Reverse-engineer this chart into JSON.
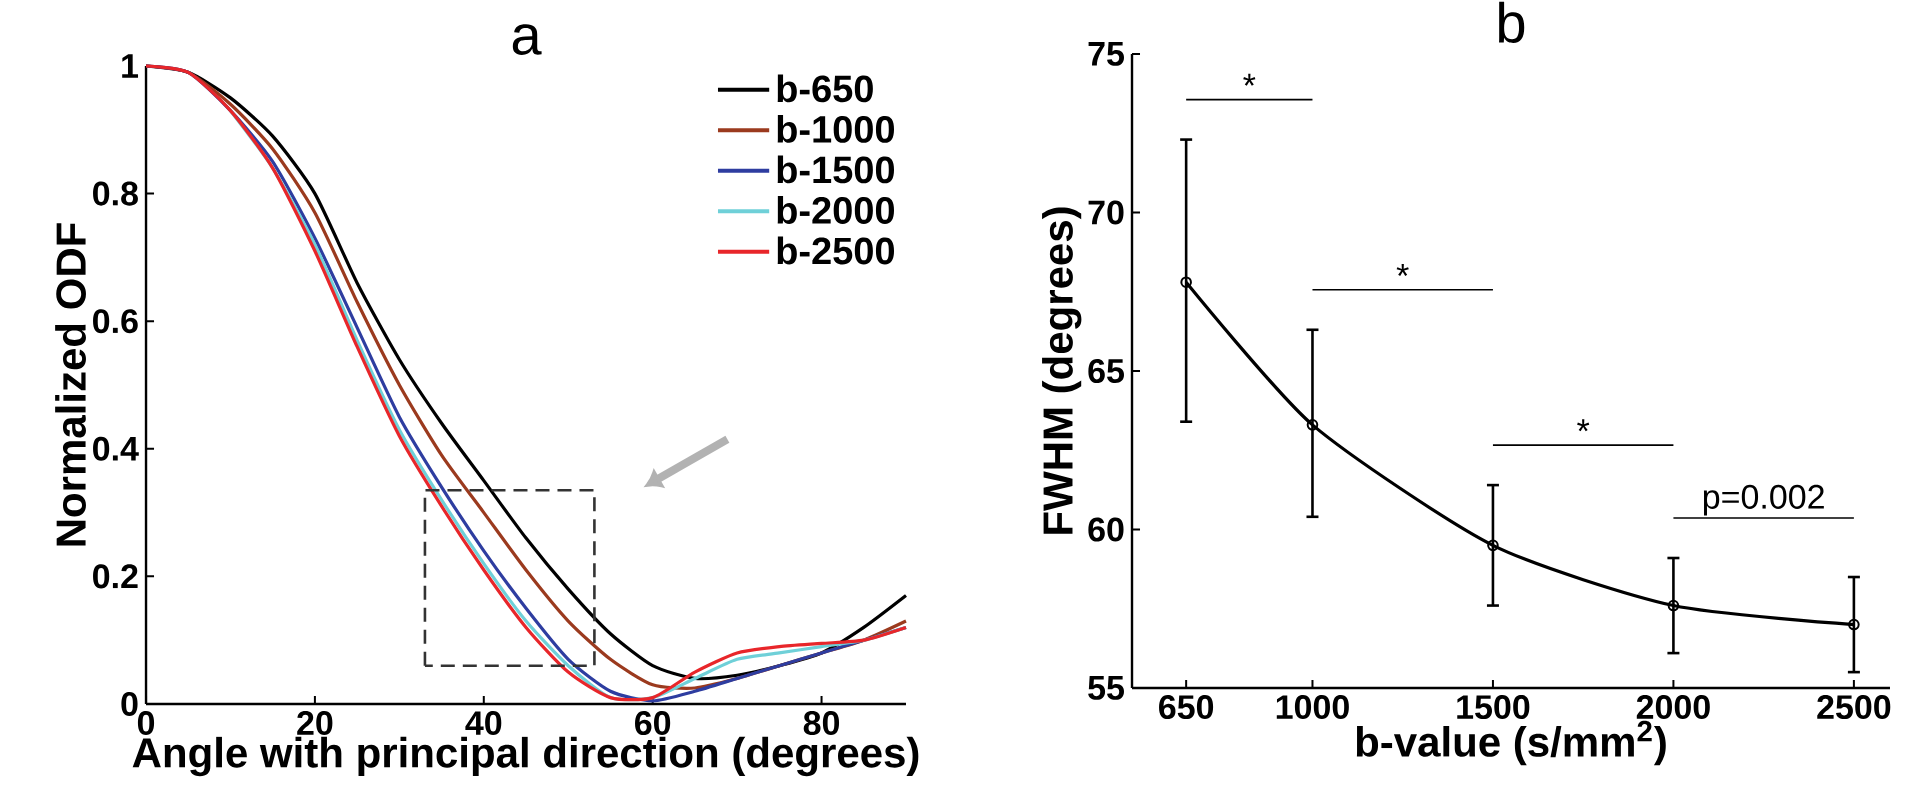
{
  "chart_data": [
    {
      "type": "line",
      "title": "a",
      "xlabel": "Angle with principal direction (degrees)",
      "ylabel": "Normalized ODF",
      "xlim": [
        0,
        90
      ],
      "ylim": [
        0,
        1
      ],
      "xticks": [
        0,
        20,
        40,
        60,
        80
      ],
      "yticks": [
        0,
        0.2,
        0.4,
        0.6,
        0.8,
        1
      ],
      "legend": "top right",
      "grid": false,
      "marker": "none",
      "line_style": "solid",
      "x": [
        0,
        5,
        10,
        15,
        20,
        25,
        30,
        35,
        40,
        45,
        50,
        55,
        60,
        65,
        70,
        75,
        80,
        85,
        90
      ],
      "series": [
        {
          "name": "b-650",
          "color": "#000000",
          "values": [
            1,
            0.99,
            0.95,
            0.89,
            0.8,
            0.66,
            0.54,
            0.44,
            0.35,
            0.26,
            0.18,
            0.11,
            0.06,
            0.04,
            0.045,
            0.06,
            0.08,
            0.12,
            0.17
          ]
        },
        {
          "name": "b-1000",
          "color": "#9b3a1e",
          "values": [
            1,
            0.99,
            0.94,
            0.87,
            0.77,
            0.63,
            0.5,
            0.39,
            0.3,
            0.21,
            0.13,
            0.07,
            0.03,
            0.025,
            0.04,
            0.06,
            0.08,
            0.1,
            0.13
          ]
        },
        {
          "name": "b-1500",
          "color": "#2e3da0",
          "values": [
            1,
            0.99,
            0.93,
            0.85,
            0.73,
            0.59,
            0.45,
            0.34,
            0.24,
            0.15,
            0.07,
            0.02,
            0.005,
            0.02,
            0.04,
            0.06,
            0.08,
            0.1,
            0.12
          ]
        },
        {
          "name": "b-2000",
          "color": "#6fd0d8",
          "values": [
            null,
            null,
            0.93,
            0.84,
            0.72,
            0.57,
            0.43,
            0.32,
            0.22,
            0.13,
            0.06,
            0.01,
            0.01,
            0.04,
            0.07,
            0.08,
            0.09,
            0.1,
            0.12
          ]
        },
        {
          "name": "b-2500",
          "color": "#e8262a",
          "values": [
            1,
            0.99,
            0.93,
            0.84,
            0.71,
            0.56,
            0.42,
            0.31,
            0.21,
            0.12,
            0.05,
            0.01,
            0.01,
            0.05,
            0.08,
            0.09,
            0.095,
            0.1,
            0.12
          ]
        }
      ]
    },
    {
      "type": "line",
      "title": "b",
      "xlabel": "b-value (s/mm$^{2}$)",
      "ylabel": "FWHM (degrees)",
      "xlim": [
        500,
        2600
      ],
      "ylim": [
        55,
        75
      ],
      "xticks": [
        650,
        1000,
        1500,
        2000,
        2500
      ],
      "yticks": [
        55,
        60,
        65,
        70,
        75
      ],
      "grid": false,
      "marker": "circle",
      "line_style": "solid",
      "x": [
        650,
        1000,
        1500,
        2000,
        2500
      ],
      "series": [
        {
          "color": "#000000",
          "values": [
            67.8,
            63.3,
            59.5,
            57.6,
            57.0
          ],
          "errors": [
            [
              63.4,
              72.3
            ],
            [
              60.4,
              66.3
            ],
            [
              57.6,
              61.4
            ],
            [
              56.1,
              59.1
            ],
            [
              55.5,
              58.5
            ]
          ]
        }
      ],
      "annotations": [
        "*",
        "*",
        "*",
        "p=0.002"
      ]
    }
  ]
}
